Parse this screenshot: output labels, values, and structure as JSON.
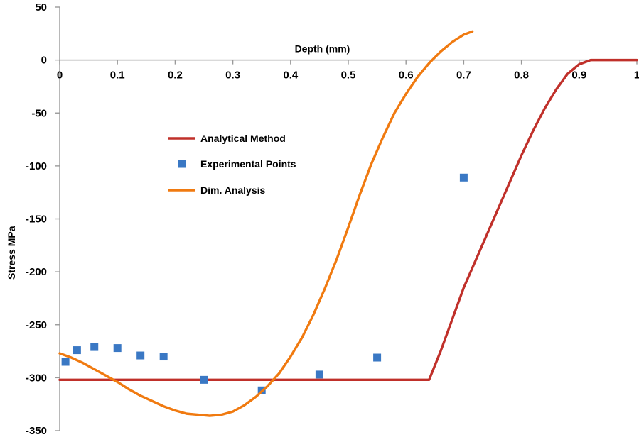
{
  "chart_data": {
    "type": "line",
    "xlabel": "Depth (mm)",
    "ylabel": "Stress MPa",
    "xlim": [
      0,
      1
    ],
    "ylim": [
      -350,
      50
    ],
    "x_ticks": [
      "0",
      "0.1",
      "0.2",
      "0.3",
      "0.4",
      "0.5",
      "0.6",
      "0.7",
      "0.8",
      "0.9",
      "1"
    ],
    "y_ticks": [
      "50",
      "0",
      "-50",
      "-100",
      "-150",
      "-200",
      "-250",
      "-300",
      "-350"
    ],
    "grid": false,
    "legend_position": "center-left",
    "series": [
      {
        "name": "Analytical Method",
        "kind": "line",
        "color": "#c0302a",
        "points": [
          [
            0,
            -302
          ],
          [
            0.1,
            -302
          ],
          [
            0.2,
            -302
          ],
          [
            0.3,
            -302
          ],
          [
            0.4,
            -302
          ],
          [
            0.5,
            -302
          ],
          [
            0.6,
            -302
          ],
          [
            0.64,
            -302
          ],
          [
            0.66,
            -275
          ],
          [
            0.68,
            -245
          ],
          [
            0.7,
            -215
          ],
          [
            0.72,
            -190
          ],
          [
            0.74,
            -165
          ],
          [
            0.76,
            -140
          ],
          [
            0.78,
            -115
          ],
          [
            0.8,
            -90
          ],
          [
            0.82,
            -67
          ],
          [
            0.84,
            -46
          ],
          [
            0.86,
            -28
          ],
          [
            0.88,
            -13
          ],
          [
            0.9,
            -4
          ],
          [
            0.92,
            0
          ],
          [
            0.94,
            0
          ],
          [
            0.96,
            0
          ],
          [
            0.98,
            0
          ],
          [
            1.0,
            0
          ]
        ]
      },
      {
        "name": "Experimental Points",
        "kind": "scatter",
        "color": "#3a78c4",
        "points": [
          [
            0.01,
            -285
          ],
          [
            0.03,
            -274
          ],
          [
            0.06,
            -271
          ],
          [
            0.1,
            -272
          ],
          [
            0.14,
            -279
          ],
          [
            0.18,
            -280
          ],
          [
            0.25,
            -302
          ],
          [
            0.35,
            -312
          ],
          [
            0.45,
            -297
          ],
          [
            0.55,
            -281
          ],
          [
            0.7,
            -111
          ]
        ]
      },
      {
        "name": "Dim. Analysis",
        "kind": "line",
        "color": "#f07a10",
        "points": [
          [
            0,
            -277
          ],
          [
            0.02,
            -281
          ],
          [
            0.04,
            -286
          ],
          [
            0.06,
            -292
          ],
          [
            0.08,
            -298
          ],
          [
            0.1,
            -304
          ],
          [
            0.12,
            -311
          ],
          [
            0.14,
            -317
          ],
          [
            0.16,
            -322
          ],
          [
            0.18,
            -327
          ],
          [
            0.2,
            -331
          ],
          [
            0.22,
            -334
          ],
          [
            0.24,
            -335
          ],
          [
            0.26,
            -336
          ],
          [
            0.28,
            -335
          ],
          [
            0.3,
            -332
          ],
          [
            0.32,
            -326
          ],
          [
            0.34,
            -318
          ],
          [
            0.36,
            -308
          ],
          [
            0.38,
            -296
          ],
          [
            0.4,
            -280
          ],
          [
            0.42,
            -262
          ],
          [
            0.44,
            -240
          ],
          [
            0.46,
            -215
          ],
          [
            0.48,
            -188
          ],
          [
            0.5,
            -158
          ],
          [
            0.52,
            -127
          ],
          [
            0.54,
            -98
          ],
          [
            0.56,
            -73
          ],
          [
            0.58,
            -50
          ],
          [
            0.6,
            -32
          ],
          [
            0.62,
            -16
          ],
          [
            0.64,
            -3
          ],
          [
            0.66,
            8
          ],
          [
            0.68,
            17
          ],
          [
            0.7,
            24
          ],
          [
            0.715,
            27
          ]
        ]
      }
    ]
  }
}
